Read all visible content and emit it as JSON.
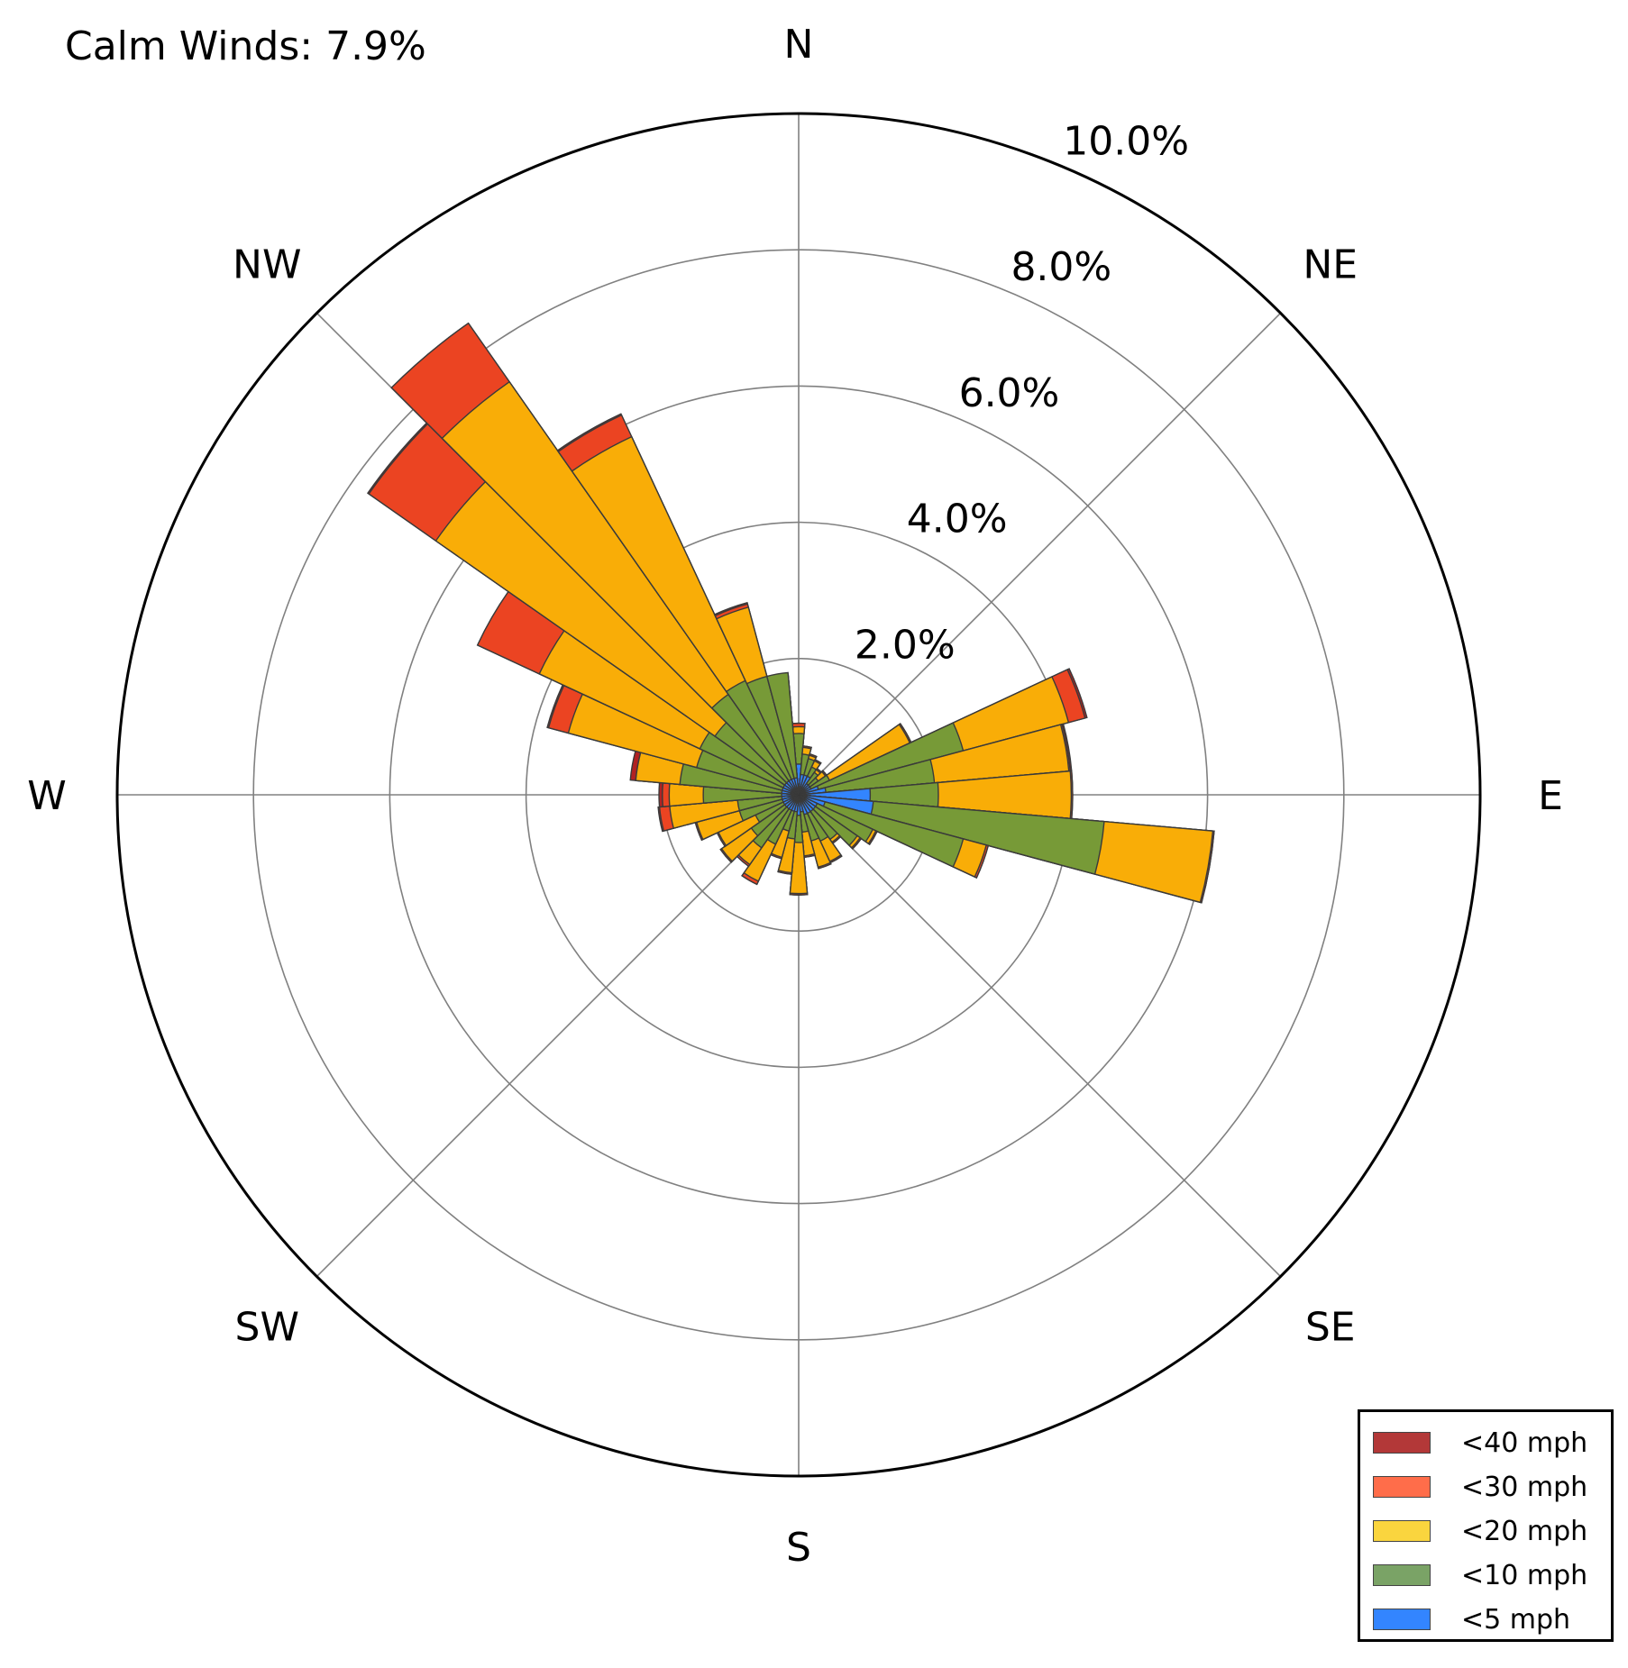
{
  "chart_data": {
    "type": "windrose",
    "calm_label": "Calm Winds: 7.9%",
    "directions": [
      "N",
      "NE",
      "E",
      "SE",
      "S",
      "SW",
      "W",
      "NW"
    ],
    "radial_ticks": [
      "2.0%",
      "4.0%",
      "6.0%",
      "8.0%",
      "10.0%"
    ],
    "radial_tick_values": [
      2,
      4,
      6,
      8,
      10
    ],
    "rmax": 10,
    "grid": true,
    "legend_position": "bottom-right",
    "sector_width_deg": 10,
    "bin_order": [
      "<5 mph",
      "<10 mph",
      "<20 mph",
      "<30 mph",
      "<40 mph"
    ],
    "colors": {
      "<5 mph": "#3385ff",
      "<10 mph": "#779a37",
      "<20 mph": "#f9ad07",
      "<30 mph": "#eb4422",
      "<40 mph": "#b22222"
    },
    "legend_entries": [
      {
        "label": "<40 mph",
        "color": "#b33838"
      },
      {
        "label": "<30 mph",
        "color": "#ff6d4a"
      },
      {
        "label": "<20 mph",
        "color": "#fad53e"
      },
      {
        "label": "<10 mph",
        "color": "#7aa366"
      },
      {
        "label": "<5 mph",
        "color": "#3385ff"
      }
    ],
    "sectors": [
      {
        "dir": 0,
        "values": [
          0.45,
          0.9,
          1.0,
          1.05,
          1.05
        ]
      },
      {
        "dir": 10,
        "values": [
          0.3,
          0.6,
          0.7,
          0.72,
          0.72
        ]
      },
      {
        "dir": 20,
        "values": [
          0.3,
          0.55,
          0.6,
          0.62,
          0.62
        ]
      },
      {
        "dir": 30,
        "values": [
          0.3,
          0.45,
          0.55,
          0.57,
          0.57
        ]
      },
      {
        "dir": 40,
        "values": [
          0.2,
          0.4,
          0.45,
          0.47,
          0.47
        ]
      },
      {
        "dir": 50,
        "values": [
          0.2,
          0.35,
          0.48,
          0.5,
          0.5
        ]
      },
      {
        "dir": 60,
        "values": [
          0.2,
          0.5,
          1.8,
          1.82,
          1.82
        ]
      },
      {
        "dir": 70,
        "values": [
          0.3,
          2.5,
          4.1,
          4.35,
          4.38
        ]
      },
      {
        "dir": 80,
        "values": [
          0.4,
          2.0,
          3.98,
          4.0,
          4.02
        ]
      },
      {
        "dir": 90,
        "values": [
          1.05,
          2.05,
          4.0,
          4.02,
          4.02
        ]
      },
      {
        "dir": 100,
        "values": [
          1.1,
          4.5,
          6.1,
          6.12,
          6.12
        ]
      },
      {
        "dir": 110,
        "values": [
          0.4,
          2.5,
          2.85,
          2.88,
          2.88
        ]
      },
      {
        "dir": 120,
        "values": [
          0.3,
          1.2,
          1.25,
          1.27,
          1.27
        ]
      },
      {
        "dir": 130,
        "values": [
          0.3,
          1.05,
          1.1,
          1.12,
          1.12
        ]
      },
      {
        "dir": 140,
        "values": [
          0.3,
          0.8,
          0.85,
          0.87,
          0.87
        ]
      },
      {
        "dir": 150,
        "values": [
          0.3,
          0.75,
          1.08,
          1.1,
          1.1
        ]
      },
      {
        "dir": 160,
        "values": [
          0.3,
          0.7,
          1.1,
          1.12,
          1.12
        ]
      },
      {
        "dir": 170,
        "values": [
          0.25,
          0.55,
          0.9,
          0.92,
          0.92
        ]
      },
      {
        "dir": 180,
        "values": [
          0.3,
          0.7,
          1.45,
          1.47,
          1.47
        ]
      },
      {
        "dir": 190,
        "values": [
          0.25,
          0.65,
          1.15,
          1.17,
          1.17
        ]
      },
      {
        "dir": 200,
        "values": [
          0.25,
          0.55,
          0.95,
          0.97,
          0.97
        ]
      },
      {
        "dir": 210,
        "values": [
          0.25,
          0.8,
          1.4,
          1.45,
          1.45
        ]
      },
      {
        "dir": 220,
        "values": [
          0.25,
          0.95,
          1.25,
          1.28,
          1.28
        ]
      },
      {
        "dir": 230,
        "values": [
          0.25,
          0.85,
          1.38,
          1.4,
          1.4
        ]
      },
      {
        "dir": 240,
        "values": [
          0.25,
          0.7,
          1.3,
          1.32,
          1.32
        ]
      },
      {
        "dir": 250,
        "values": [
          0.25,
          0.9,
          1.55,
          1.57,
          1.57
        ]
      },
      {
        "dir": 260,
        "values": [
          0.25,
          0.9,
          1.9,
          2.05,
          2.07
        ]
      },
      {
        "dir": 270,
        "values": [
          0.25,
          1.4,
          1.9,
          2.0,
          2.05
        ]
      },
      {
        "dir": 280,
        "values": [
          0.25,
          1.75,
          2.4,
          2.4,
          2.48
        ]
      },
      {
        "dir": 290,
        "values": [
          0.25,
          1.55,
          3.5,
          3.8,
          3.82
        ]
      },
      {
        "dir": 300,
        "values": [
          0.25,
          1.6,
          4.2,
          5.2,
          5.2
        ]
      },
      {
        "dir": 310,
        "values": [
          0.25,
          1.5,
          6.5,
          7.7,
          7.72
        ]
      },
      {
        "dir": 320,
        "values": [
          0.25,
          1.8,
          7.4,
          8.45,
          8.45
        ]
      },
      {
        "dir": 330,
        "values": [
          0.25,
          1.85,
          5.8,
          6.15,
          6.17
        ]
      },
      {
        "dir": 340,
        "values": [
          0.25,
          1.8,
          2.85,
          2.9,
          2.92
        ]
      },
      {
        "dir": 350,
        "values": [
          0.25,
          1.8,
          1.7,
          1.75,
          1.77
        ]
      }
    ]
  }
}
